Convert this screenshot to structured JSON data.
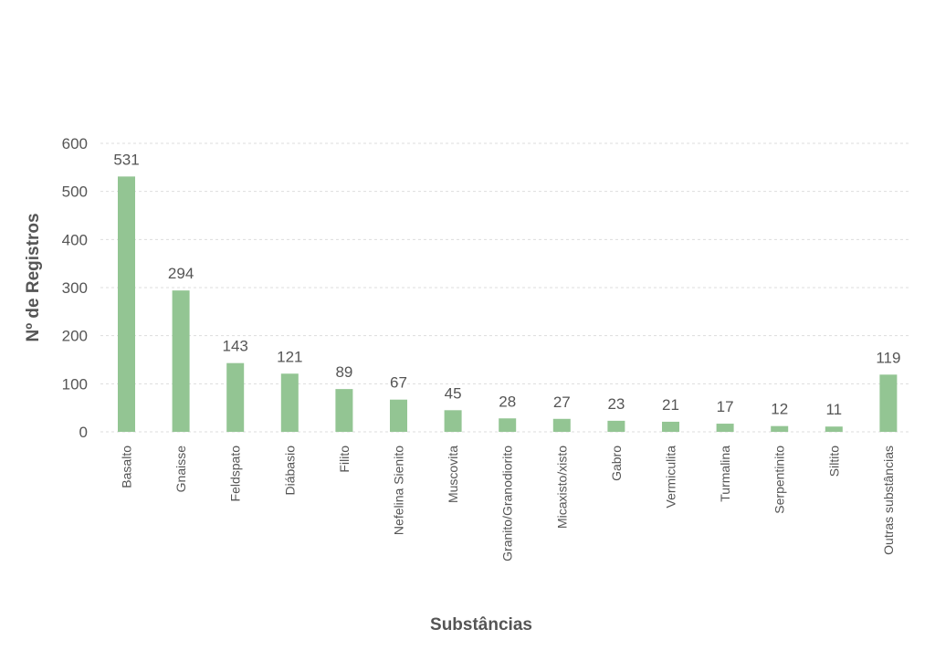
{
  "chart_data": {
    "type": "bar",
    "title": "",
    "xlabel": "Substâncias",
    "ylabel": "Nº de Registros",
    "ylim": [
      0,
      600
    ],
    "yticks": [
      0,
      100,
      200,
      300,
      400,
      500,
      600
    ],
    "grid": true,
    "bar_color": "#93c593",
    "categories": [
      "Basalto",
      "Gnaisse",
      "Feldspato",
      "Diábasio",
      "Filito",
      "Nefelina Sienito",
      "Muscovita",
      "Granito/Granodiorito",
      "Micaxisto/xisto",
      "Gabro",
      "Vermiculita",
      "Turmalina",
      "Serpentinito",
      "Siltito",
      "Outras substâncias"
    ],
    "values": [
      531,
      294,
      143,
      121,
      89,
      67,
      45,
      28,
      27,
      23,
      21,
      17,
      12,
      11,
      119
    ]
  }
}
